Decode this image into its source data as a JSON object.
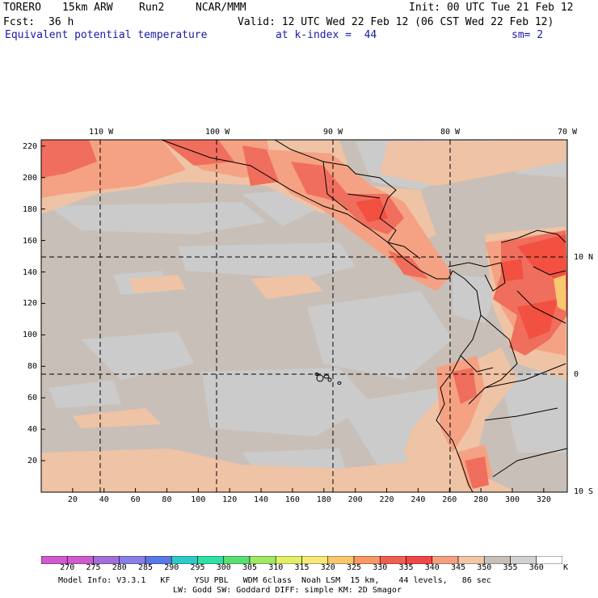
{
  "header": {
    "model": "TORERO",
    "resolution": "15km ARW",
    "run": "Run2",
    "org": "NCAR/MMM",
    "init": "Init: 00 UTC Tue 21 Feb 12",
    "fcst_label": "Fcst:",
    "fcst_value": "36 h",
    "valid": "Valid: 12 UTC Wed 22 Feb 12 (06 CST Wed 22 Feb 12)",
    "field": "Equivalent potential temperature",
    "level": "at k-index =  44",
    "smoothing": "sm= 2"
  },
  "map": {
    "lon_labels": [
      "110 W",
      "100 W",
      "90 W",
      "80 W",
      "70 W"
    ],
    "lat_labels": [
      "10 N",
      "0",
      "10 S"
    ],
    "x_ticks": [
      "20",
      "40",
      "60",
      "80",
      "100",
      "120",
      "140",
      "160",
      "180",
      "200",
      "220",
      "240",
      "260",
      "280",
      "300",
      "320"
    ],
    "y_ticks": [
      "220",
      "200",
      "180",
      "160",
      "140",
      "120",
      "100",
      "80",
      "60",
      "40",
      "20"
    ],
    "colors": {
      "background_ocean": "#c8bfb8",
      "grey_patch": "#cbcbcb",
      "warm_340": "#efc3a5",
      "warm_335": "#f4a283",
      "warm_330": "#f06e5d",
      "warm_325": "#f25040",
      "gridline": "#000000"
    }
  },
  "colorbar": {
    "unit": "K",
    "labels": [
      "270",
      "275",
      "280",
      "285",
      "290",
      "295",
      "300",
      "305",
      "310",
      "315",
      "320",
      "325",
      "330",
      "335",
      "340",
      "345",
      "350",
      "355",
      "360"
    ],
    "colors": [
      "#d05ad0",
      "#a070d8",
      "#8a7ee8",
      "#5a78e8",
      "#30c8c8",
      "#30e0a8",
      "#58e070",
      "#a0e868",
      "#e0f068",
      "#f8e878",
      "#f8c870",
      "#f89868",
      "#f06050",
      "#f04848",
      "#f4a080",
      "#f0c8a8",
      "#c8bfb8",
      "#d2d2d2",
      "#ffffff"
    ]
  },
  "footer": {
    "line1": "Model Info: V3.3.1   KF     YSU PBL   WDM 6class  Noah LSM  15 km,    44 levels,   86 sec",
    "line2": "LW: Godd SW: Goddard DIFF: simple KM: 2D Smagor"
  }
}
